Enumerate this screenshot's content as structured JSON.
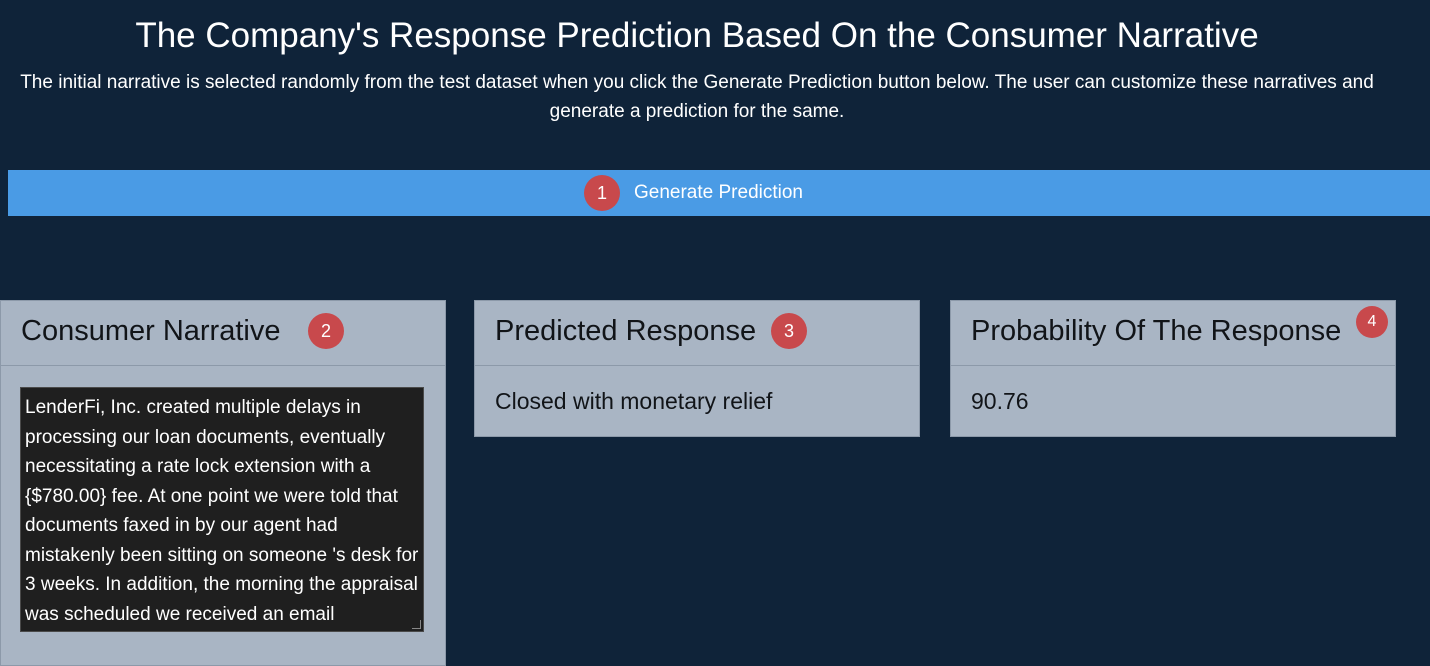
{
  "header": {
    "title": "The Company's Response Prediction Based On the Consumer Narrative",
    "description": "The initial narrative is selected randomly from the test dataset when you click the Generate Prediction button below. The user can customize these narratives and generate a prediction for the same."
  },
  "generate_button": {
    "label": "Generate Prediction",
    "badge": "1"
  },
  "panels": {
    "narrative": {
      "title": "Consumer Narrative",
      "badge": "2",
      "text": "LenderFi, Inc. created multiple delays in processing our loan documents, eventually necessitating a rate lock extension with a {$780.00} fee. At one point we were told that documents faxed in by our agent had mistakenly been sitting on someone 's desk for 3 weeks. In addition, the morning the appraisal was scheduled we received an email"
    },
    "response": {
      "title": "Predicted Response",
      "badge": "3",
      "value": "Closed with monetary relief"
    },
    "probability": {
      "title": "Probability Of The Response",
      "badge": "4",
      "value": "90.76"
    }
  },
  "colors": {
    "background": "#0f2339",
    "button": "#4a9be5",
    "panel": "#a9b5c4",
    "badge": "#c8494c",
    "textarea": "#1f1f1f"
  }
}
